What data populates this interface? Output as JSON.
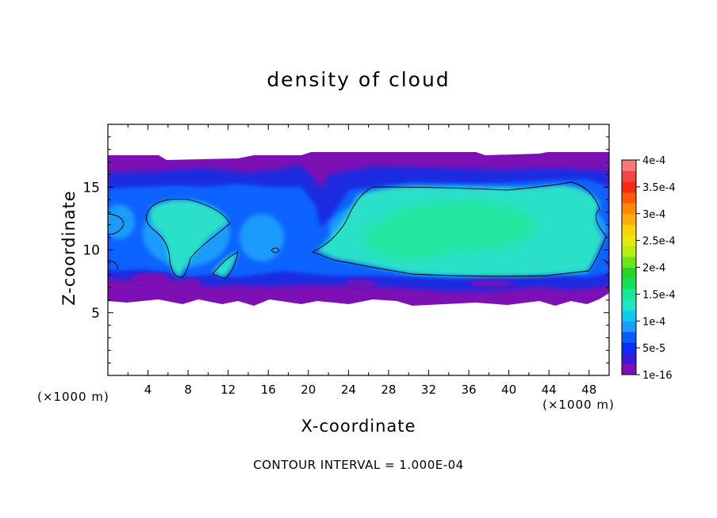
{
  "chart_data": {
    "type": "heatmap",
    "title": "density of cloud",
    "xlabel": "X-coordinate",
    "ylabel": "Z-coordinate",
    "x_unit": "(×1000 m)",
    "y_unit": "(×1000 m)",
    "xlim": [
      0,
      50
    ],
    "ylim": [
      0,
      20
    ],
    "x_ticks": [
      "4",
      "8",
      "12",
      "16",
      "20",
      "24",
      "28",
      "32",
      "36",
      "40",
      "44",
      "48"
    ],
    "y_ticks": [
      "5",
      "10",
      "15"
    ],
    "footer": "CONTOUR INTERVAL = 1.000E-04",
    "colorbar": {
      "labels": [
        "1e-16",
        "5e-5",
        "1e-4",
        "1.5e-4",
        "2e-4",
        "2.5e-4",
        "3e-4",
        "3.5e-4",
        "4e-4"
      ],
      "colors": [
        "#7d10b4",
        "#3a1ad9",
        "#0b2ef2",
        "#0a5cff",
        "#1e9bff",
        "#12c8f2",
        "#1ee6c0",
        "#18e69a",
        "#14e05a",
        "#2ad42a",
        "#6ee41a",
        "#b4ee14",
        "#e8e80e",
        "#ffd20c",
        "#ffae0e",
        "#ff8a08",
        "#ff5a0a",
        "#f52a14",
        "#ef4646",
        "#f47a7a"
      ]
    },
    "regions": [
      {
        "level": 0,
        "color": "#7d10b4",
        "x": [
          0,
          50
        ],
        "z": [
          6.0,
          17.6
        ]
      },
      {
        "level": 1,
        "color": "#1c2be0",
        "x": [
          0,
          50
        ],
        "z": [
          6.6,
          16.3
        ]
      },
      {
        "level": 2,
        "color": "#0a64ff",
        "x": [
          0,
          50
        ],
        "z": [
          7.3,
          15.2
        ]
      },
      {
        "level": 3,
        "color": "#2ae0c8",
        "x": [
          22,
          48
        ],
        "z": [
          8.0,
          14.8
        ]
      },
      {
        "level": 4,
        "color": "#20e6a0",
        "x": [
          26,
          42
        ],
        "z": [
          10.0,
          13.5
        ]
      }
    ],
    "contour_level": "1e-4"
  }
}
